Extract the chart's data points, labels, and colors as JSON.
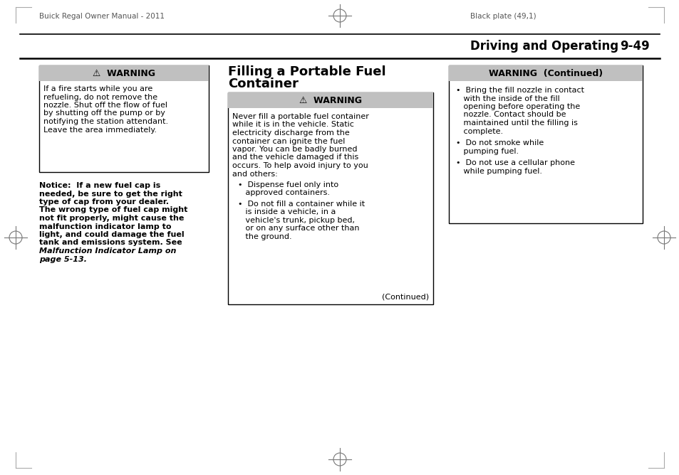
{
  "page_bg": "#ffffff",
  "header_left": "Buick Regal Owner Manual - 2011",
  "header_right": "Black plate (49,1)",
  "section_title": "Driving and Operating",
  "page_number": "9-49",
  "left_box_title": "⚠  WARNING",
  "left_box_text_lines": [
    "If a fire starts while you are",
    "refueling, do not remove the",
    "nozzle. Shut off the flow of fuel",
    "by shutting off the pump or by",
    "notifying the station attendant.",
    "Leave the area immediately."
  ],
  "notice_line1": "Notice:  If a new fuel cap is",
  "notice_lines_bold": [
    "Notice:  If a new fuel cap is",
    "needed, be sure to get the right",
    "type of cap from your dealer.",
    "The wrong type of fuel cap might",
    "not fit properly, might cause the",
    "malfunction indicator lamp to",
    "light, and could damage the fuel",
    "tank and emissions system. See"
  ],
  "notice_lines_italic": [
    "Malfunction Indicator Lamp on",
    "page 5-13."
  ],
  "main_title_line1": "Filling a Portable Fuel",
  "main_title_line2": "Container",
  "center_box_title": "⚠  WARNING",
  "center_box_text_lines": [
    "Never fill a portable fuel container",
    "while it is in the vehicle. Static",
    "electricity discharge from the",
    "container can ignite the fuel",
    "vapor. You can be badly burned",
    "and the vehicle damaged if this",
    "occurs. To help avoid injury to you",
    "and others:"
  ],
  "center_bullet1_lines": [
    "•  Dispense fuel only into",
    "   approved containers."
  ],
  "center_bullet2_lines": [
    "•  Do not fill a container while it",
    "   is inside a vehicle, in a",
    "   vehicle's trunk, pickup bed,",
    "   or on any surface other than",
    "   the ground."
  ],
  "center_continued": "(Continued)",
  "right_box_title": "WARNING  (Continued)",
  "right_bullet1_lines": [
    "•  Bring the fill nozzle in contact",
    "   with the inside of the fill",
    "   opening before operating the",
    "   nozzle. Contact should be",
    "   maintained until the filling is",
    "   complete."
  ],
  "right_bullet2_lines": [
    "•  Do not smoke while",
    "   pumping fuel."
  ],
  "right_bullet3_lines": [
    "•  Do not use a cellular phone",
    "   while pumping fuel."
  ]
}
